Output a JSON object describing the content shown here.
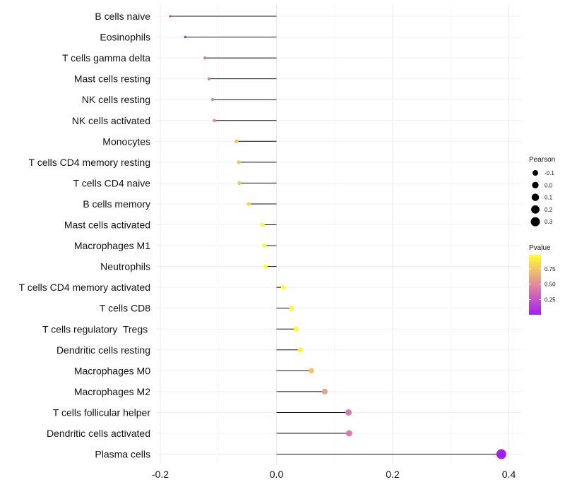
{
  "chart_data": {
    "type": "lollipop",
    "x_axis": {
      "min": -0.2,
      "max": 0.4,
      "ticks": [
        -0.2,
        0.0,
        0.2,
        0.4
      ],
      "tick_labels": [
        "-0.2",
        "0.0",
        "0.2",
        "0.4"
      ],
      "grid": true
    },
    "categories": [
      "B cells naive",
      "Eosinophils",
      "T cells gamma delta",
      "Mast cells resting",
      "NK cells resting",
      "NK cells activated",
      "Monocytes",
      "T cells CD4 memory resting",
      "T cells CD4 naive",
      "B cells memory",
      "Mast cells activated",
      "Macrophages M1",
      "Neutrophils",
      "T cells CD4 memory activated",
      "T cells CD8",
      "T cells regulatory  Tregs ",
      "Dendritic cells resting",
      "Macrophages M0",
      "Macrophages M2",
      "T cells follicular helper",
      "Dendritic cells activated",
      "Plasma cells"
    ],
    "pearson": [
      -0.183,
      -0.157,
      -0.123,
      -0.116,
      -0.11,
      -0.107,
      -0.069,
      -0.065,
      -0.064,
      -0.048,
      -0.024,
      -0.021,
      -0.019,
      0.012,
      0.026,
      0.034,
      0.041,
      0.06,
      0.083,
      0.124,
      0.125,
      0.387
    ],
    "pvalue": [
      0.03,
      0.1,
      0.35,
      0.4,
      0.45,
      0.47,
      0.72,
      0.74,
      0.74,
      0.81,
      0.96,
      0.96,
      0.97,
      0.98,
      0.97,
      0.96,
      0.93,
      0.74,
      0.6,
      0.43,
      0.43,
      0.001
    ],
    "size_legend": {
      "title": "Pearson",
      "values": [
        -0.1,
        0.0,
        0.1,
        0.2,
        0.3
      ],
      "labels": [
        "-0.1",
        "0.0",
        "0.1",
        "0.2",
        "0.3"
      ]
    },
    "color_legend": {
      "title": "Pvalue",
      "ticks": [
        0.25,
        0.5,
        0.75
      ],
      "labels": [
        "0.25",
        "0.50",
        "0.75"
      ],
      "range": [
        0.001,
        0.98
      ],
      "low_color": "#a020f0",
      "high_color": "#ffff33"
    },
    "xlabel": "",
    "ylabel": "",
    "title": "",
    "legend_position": "right"
  }
}
